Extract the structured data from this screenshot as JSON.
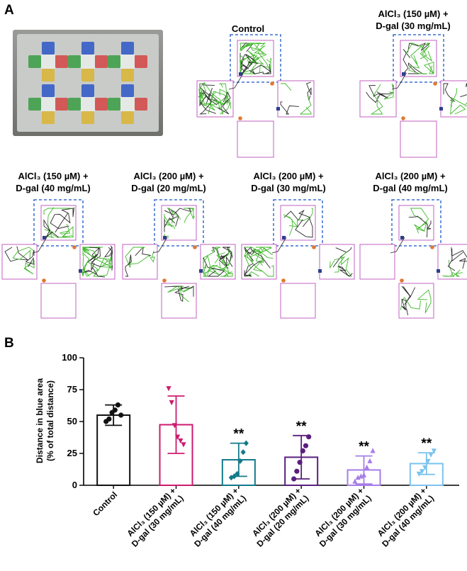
{
  "panel_a": {
    "letter": "A",
    "photo": {
      "kind": "plus-maze apparatus photograph"
    },
    "mazes": [
      {
        "line1": "Control",
        "line2": ""
      },
      {
        "line1": "AlCl₃ (150 µM) +",
        "line2": "D-gal (30 mg/mL)"
      },
      {
        "line1": "AlCl₃ (150 µM) +",
        "line2": "D-gal (40 mg/mL)"
      },
      {
        "line1": "AlCl₃ (200 µM) +",
        "line2": "D-gal (20 mg/mL)"
      },
      {
        "line1": "AlCl₃ (200 µM) +",
        "line2": "D-gal (30 mg/mL)"
      },
      {
        "line1": "AlCl₃ (200 µM) +",
        "line2": "D-gal (40 mg/mL)"
      }
    ],
    "colors": {
      "arm_border": "#c060c0",
      "dashed_box": "#3a6fd0",
      "track_green": "#3fb82a",
      "track_dark": "#2a2a2a",
      "marker_blue": "#2d3f8c",
      "marker_orange": "#e07830"
    }
  },
  "panel_b": {
    "letter": "B"
  },
  "chart_data": {
    "type": "bar",
    "title": "",
    "ylabel_line1": "Distance in blue area",
    "ylabel_line2": "(% of total distance)",
    "ylim": [
      0,
      100
    ],
    "yticks": [
      0,
      25,
      50,
      75,
      100
    ],
    "categories": [
      {
        "line1": "Control",
        "line2": ""
      },
      {
        "line1": "AlCl₃ (150 µM) +",
        "line2": "D-gal (30 mg/mL)"
      },
      {
        "line1": "AlCl₃ (150 µM) +",
        "line2": "D-gal (40 mg/mL)"
      },
      {
        "line1": "AlCl₃ (200 µM) +",
        "line2": "D-gal (20 mg/mL)"
      },
      {
        "line1": "AlCl₃ (200 µM) +",
        "line2": "D-gal (30 mg/mL)"
      },
      {
        "line1": "AlCl₃ (200 µM) +",
        "line2": "D-gal (40 mg/mL)"
      }
    ],
    "means": [
      55,
      47.5,
      20,
      22,
      12,
      17
    ],
    "sd": [
      8,
      22.5,
      13,
      17,
      11,
      8.5
    ],
    "significance": [
      "",
      "",
      "**",
      "**",
      "**",
      "**"
    ],
    "points": [
      [
        50,
        52,
        57,
        59,
        63,
        55
      ],
      [
        76,
        65,
        47,
        38,
        35,
        32
      ],
      [
        6,
        7,
        9,
        19,
        26,
        33
      ],
      [
        5,
        11,
        18,
        27,
        31,
        38
      ],
      [
        3,
        6,
        7,
        8,
        14,
        19,
        27
      ],
      [
        9,
        11,
        14,
        19,
        24,
        27
      ]
    ],
    "markers": [
      "circle",
      "triangle-down",
      "diamond",
      "circle",
      "triangle-up",
      "triangle-down"
    ],
    "colors": [
      "#111111",
      "#cc1b6e",
      "#137a8a",
      "#5a1f7e",
      "#a77de8",
      "#7cc3ee"
    ]
  }
}
